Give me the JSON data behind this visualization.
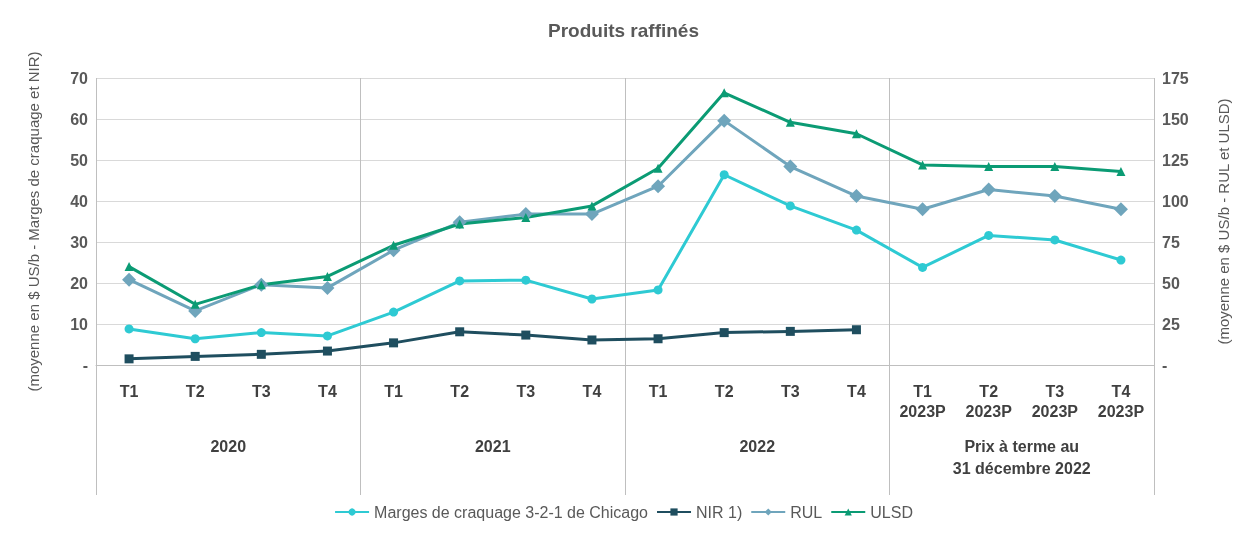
{
  "chart_data": {
    "type": "line",
    "title": "Produits raffinés",
    "ylabel": "(moyenne en $ US/b - Marges de craquage et NIR)",
    "y2label": "(moyenne en $ US/b - RUL et ULSD)",
    "categories": [
      "T1",
      "T2",
      "T3",
      "T4",
      "T1",
      "T2",
      "T3",
      "T4",
      "T1",
      "T2",
      "T3",
      "T4",
      "T1\n2023P",
      "T2\n2023P",
      "T3\n2023P",
      "T4\n2023P"
    ],
    "annotations": [
      "2020",
      "2021",
      "2022",
      "Prix à terme au\n31 décembre 2022"
    ],
    "series": [
      {
        "name": "Marges de craquage 3-2-1 de Chicago",
        "color": "#2ecad3",
        "marker": "circle",
        "values": [
          8.8,
          6.4,
          7.9,
          7.1,
          12.9,
          20.5,
          20.7,
          16.1,
          18.3,
          46.4,
          38.8,
          32.9,
          23.8,
          31.6,
          30.5,
          25.6
        ]
      },
      {
        "name": "NIR 1)",
        "color": "#1f4e5f",
        "marker": "square",
        "values": [
          1.5,
          2.1,
          2.6,
          3.4,
          5.4,
          8.1,
          7.3,
          6.1,
          6.4,
          7.9,
          8.2,
          8.6,
          null,
          null,
          null,
          null
        ]
      },
      {
        "name": "RUL",
        "color": "#6fa5bc",
        "marker": "diamond",
        "axis": "y2",
        "values": [
          52,
          33,
          49,
          47,
          70,
          87,
          92,
          92,
          109,
          149,
          121,
          103,
          95,
          107,
          103,
          95
        ]
      },
      {
        "name": "ULSD",
        "color": "#0b9b74",
        "marker": "triangle",
        "axis": "y2",
        "values": [
          60,
          37,
          49,
          54,
          73,
          86,
          90,
          97,
          120,
          166,
          148,
          141,
          122,
          121,
          121,
          118
        ]
      }
    ],
    "ylim": [
      0,
      70
    ],
    "yticks": [
      {
        "value": 0,
        "label": "-"
      },
      10,
      20,
      30,
      40,
      50,
      60,
      70
    ],
    "y2lim": [
      0,
      175
    ],
    "y2ticks": [
      {
        "value": 0,
        "label": "-"
      },
      25,
      50,
      75,
      100,
      125,
      150,
      175
    ],
    "grid": "y",
    "legend": "bottom"
  }
}
